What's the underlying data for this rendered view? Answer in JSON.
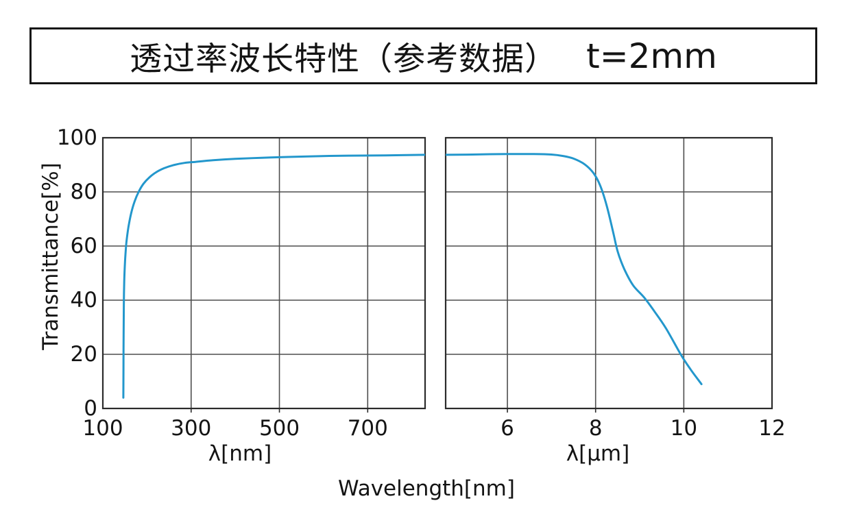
{
  "title": {
    "main": "透过率波长特性（参考数据）",
    "thickness": "t=2mm"
  },
  "chart_data": {
    "type": "line",
    "title": "透过率波长特性（参考数据） t=2mm",
    "legend": "none",
    "grid": true,
    "line_color": "#2397CC",
    "grid_color": "#4d4d4d",
    "axis_color": "#2b2b2b",
    "y_axis": {
      "label": "Transmittance[%]",
      "range": [
        0,
        100
      ],
      "ticks": [
        0,
        20,
        40,
        60,
        80,
        100
      ]
    },
    "x_axis_bottom_label": "Wavelength[nm]",
    "panels": [
      {
        "xlabel": "λ[nm]",
        "x_unit": "nm",
        "x_range": [
          100,
          830
        ],
        "x_ticks": [
          {
            "value": 100,
            "label": "100"
          },
          {
            "value": 300,
            "label": "300"
          },
          {
            "value": 500,
            "label": "500"
          },
          {
            "value": 700,
            "label": "700"
          }
        ],
        "series_name": "transmittance-uv-vis",
        "series_points": [
          [
            146.5,
            4
          ],
          [
            146.7,
            15
          ],
          [
            147,
            27
          ],
          [
            147.5,
            38
          ],
          [
            148.5,
            47
          ],
          [
            150.5,
            55
          ],
          [
            153.5,
            61.5
          ],
          [
            158,
            67
          ],
          [
            164,
            72
          ],
          [
            172,
            76.5
          ],
          [
            181,
            80
          ],
          [
            192,
            83
          ],
          [
            205,
            85.3
          ],
          [
            220,
            87.2
          ],
          [
            238,
            88.7
          ],
          [
            260,
            89.9
          ],
          [
            285,
            90.7
          ],
          [
            310,
            91.1
          ],
          [
            350,
            91.7
          ],
          [
            400,
            92.2
          ],
          [
            460,
            92.6
          ],
          [
            520,
            92.9
          ],
          [
            590,
            93.2
          ],
          [
            660,
            93.4
          ],
          [
            740,
            93.5
          ],
          [
            830,
            93.7
          ]
        ]
      },
      {
        "xlabel": "λ[μm]",
        "x_unit": "μm",
        "x_range": [
          4.6,
          12
        ],
        "x_ticks": [
          {
            "value": 6,
            "label": "6"
          },
          {
            "value": 8,
            "label": "8"
          },
          {
            "value": 10,
            "label": "10"
          },
          {
            "value": 12,
            "label": "12"
          }
        ],
        "series_name": "transmittance-ir",
        "series_points": [
          [
            4.6,
            93.7
          ],
          [
            5.2,
            93.8
          ],
          [
            6.0,
            94.0
          ],
          [
            6.6,
            94.0
          ],
          [
            7.0,
            93.8
          ],
          [
            7.25,
            93.3
          ],
          [
            7.5,
            92.3
          ],
          [
            7.75,
            90.2
          ],
          [
            7.95,
            87
          ],
          [
            8.1,
            82.5
          ],
          [
            8.25,
            75
          ],
          [
            8.4,
            65
          ],
          [
            8.5,
            58
          ],
          [
            8.65,
            51.5
          ],
          [
            8.85,
            45.5
          ],
          [
            9.1,
            41
          ],
          [
            9.35,
            35.5
          ],
          [
            9.6,
            29.5
          ],
          [
            9.93,
            20
          ],
          [
            10.15,
            14.5
          ],
          [
            10.4,
            9
          ]
        ]
      }
    ]
  }
}
